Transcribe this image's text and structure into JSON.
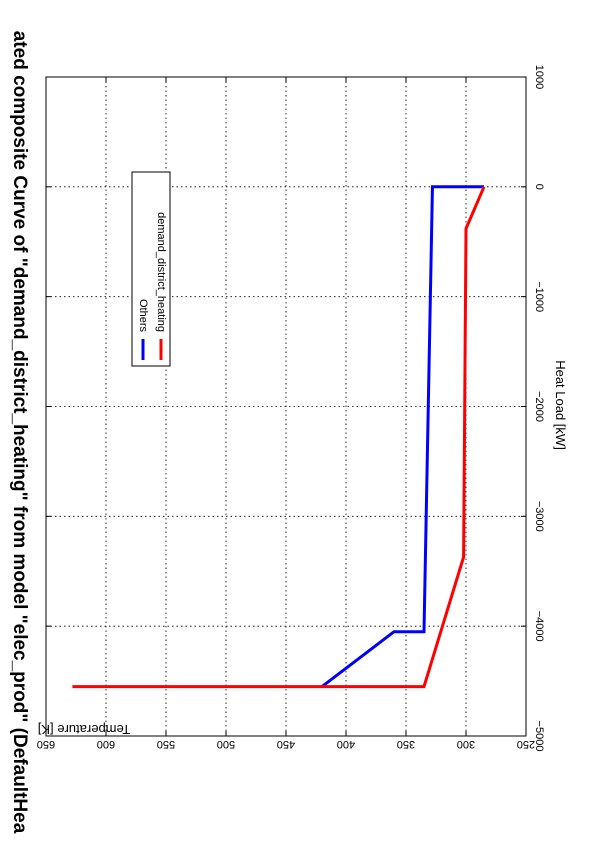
{
  "chart_data": {
    "type": "line",
    "title": "ated composite Curve of \"demand_district_heating\" from model \"elec_prod\" (DefaultHea",
    "xlabel": "Heat Load [kW]",
    "ylabel": "Temperature [K]",
    "xlim": [
      -5000,
      1000
    ],
    "ylim": [
      250,
      650
    ],
    "x_ticks": [
      -5000,
      -4000,
      -3000,
      -2000,
      -1000,
      0,
      1000
    ],
    "x_tick_labels": [
      "−5000",
      "−4000",
      "−3000",
      "−2000",
      "−1000",
      "0",
      "1000"
    ],
    "y_ticks": [
      250,
      300,
      350,
      400,
      450,
      500,
      550,
      600,
      650
    ],
    "y_tick_labels": [
      "250",
      "300",
      "350",
      "400",
      "450",
      "500",
      "550",
      "600",
      "650"
    ],
    "grid": true,
    "legend_position": "top-right",
    "orientation": "rotated 90 degrees clockwise",
    "series": [
      {
        "name": "Others",
        "color": "#0000ff",
        "x": [
          -4550,
          -4050,
          -4050,
          -4050,
          -25,
          0,
          0,
          0
        ],
        "y": [
          420,
          360,
          357,
          335,
          328,
          328,
          285,
          285
        ]
      },
      {
        "name": "demand_district_heating",
        "color": "#ff0000",
        "x": [
          -4550,
          -4550,
          -3370,
          -380,
          0
        ],
        "y": [
          628,
          335,
          302,
          300,
          285
        ]
      }
    ]
  }
}
